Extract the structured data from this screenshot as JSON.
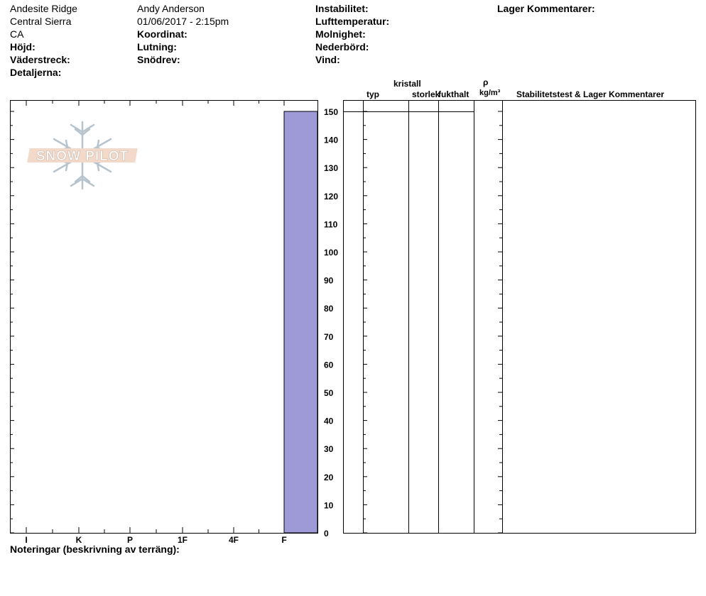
{
  "header": {
    "location": "Andesite Ridge",
    "region": "Central Sierra",
    "state": "CA",
    "observer": "Andy Anderson",
    "datetime": "01/06/2017 - 2:15pm",
    "labels": {
      "hojd": "Höjd:",
      "vaderstreck": "Väderstreck:",
      "detaljerna": "Detaljerna:",
      "koordinat": "Koordinat:",
      "lutning": "Lutning:",
      "snodrev": "Snödrev:",
      "instabilitet": "Instabilitet:",
      "lufttemperatur": "Lufttemperatur:",
      "molnighet": "Molnighet:",
      "nederbord": "Nederbörd:",
      "vind": "Vind:",
      "lager_kommentarer": "Lager Kommentarer:"
    }
  },
  "columns": {
    "kristall": "kristall",
    "typ": "typ",
    "storlek": "storlek",
    "fukthalt": "fukthalt",
    "rho": "ρ",
    "density_unit": "kg/m³",
    "comments": "Stabilitetstest & Lager Kommentarer"
  },
  "footer": {
    "notes_label": "Noteringar (beskrivning av terräng):"
  },
  "logo": {
    "text": "SNOW PILOT"
  },
  "chart_data": {
    "type": "bar",
    "hardness_categories": [
      "I",
      "K",
      "P",
      "1F",
      "4F",
      "F"
    ],
    "depth_ticks": [
      0,
      10,
      20,
      30,
      40,
      50,
      60,
      70,
      80,
      90,
      100,
      110,
      120,
      130,
      140,
      150
    ],
    "ylim": [
      0,
      150
    ],
    "layers": [
      {
        "top": 150,
        "bottom": 0,
        "hardness": "F"
      }
    ],
    "bar_color": "#9e9ad8"
  }
}
